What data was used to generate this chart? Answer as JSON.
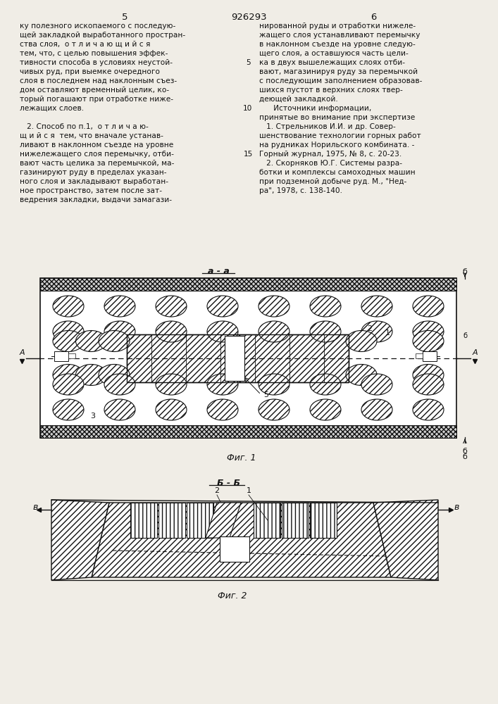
{
  "page_color": "#f0ede6",
  "text_color": "#111111",
  "title_number": "926293",
  "page_left": "5",
  "page_right": "6",
  "fig1_caption": "Фиг. 1",
  "fig2_caption": "Фиг. 2",
  "fig1_section_label": "а - а",
  "fig2_section_label": "Б - Б",
  "col1_text": [
    "ку полезного ископаемого с последую-",
    "щей закладкой выработанного простран-",
    "ства слоя,  о т л и ч а ю щ и й с я",
    "тем, что, с целью повышения эффек-",
    "тивности способа в условиях неустой-",
    "чивых руд, при выемке очередного",
    "слоя в последнем над наклонным съез-",
    "дом оставляют временный целик, ко-",
    "торый погашают при отработке ниже-",
    "лежащих слоев.",
    "",
    "   2. Способ по п.1,  о т л и ч а ю-",
    "щ и й с я  тем, что вначале устанав-",
    "ливают в наклонном съезде на уровне",
    "нижележащего слоя перемычку, отби-",
    "вают часть целика за перемычкой, ма-",
    "газинируют руду в пределах указан-",
    "ного слоя и закладывают выработан-",
    "ное пространство, затем после зат-",
    "ведрения закладки, выдачи замагази-"
  ],
  "col2_text": [
    "нированной руды и отработки нижеле-",
    "жащего слоя устанавливают перемычку",
    "в наклонном съезде на уровне следую-",
    "щего слоя, а оставшуюся часть цели-",
    "ка в двух вышележащих слоях отби-",
    "вают, магазинируя руду за перемычкой",
    "с последующим заполнением образовав-",
    "шихся пустот в верхних слоях твер-",
    "деющей закладкой.",
    "      Источники информации,",
    "принятые во внимание при экспертизе",
    "   1. Стрельников И.И. и др. Совер-",
    "шенствование технологии горных работ",
    "на рудниках Норильского комбината. -",
    "Горный журнал, 1975, № 8, с. 20-23.",
    "   2. Скорняков Ю.Г. Системы разра-",
    "ботки и комплексы самоходных машин",
    "при подземной добыче руд. М., \"Нед-",
    "ра\", 1978, с. 138-140."
  ]
}
